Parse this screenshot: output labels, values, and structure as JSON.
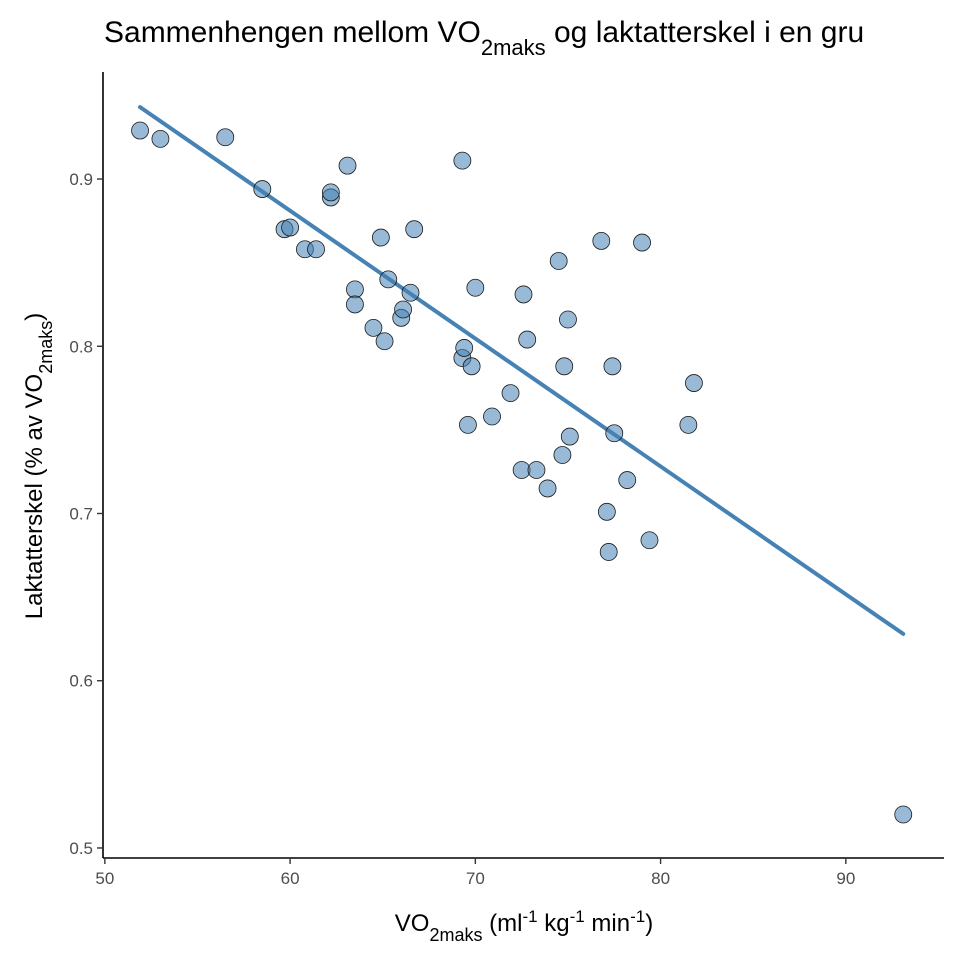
{
  "chart_data": {
    "type": "scatter",
    "title": {
      "prefix": "Sammenhengen mellom VO",
      "sub": "2maks",
      "suffix": " og laktatterskel i en gru"
    },
    "xlabel": {
      "prefix": "VO",
      "sub": "2maks",
      "mid1": " (ml",
      "sup1": "-1",
      "mid2": " kg",
      "sup2": "-1",
      "mid3": " min",
      "sup3": "-1",
      "suffix": ")"
    },
    "ylabel": {
      "prefix": "Laktatterskel (% av VO",
      "sub": "2maks",
      "suffix": ")"
    },
    "xlim": [
      49.9,
      95.3
    ],
    "ylim": [
      0.494,
      0.964
    ],
    "x_ticks": [
      50,
      60,
      70,
      80,
      90
    ],
    "y_ticks": [
      0.5,
      0.6,
      0.7,
      0.8,
      0.9
    ],
    "grid": false,
    "trend_line": {
      "x": [
        51.9,
        93.1
      ],
      "y": [
        0.943,
        0.628
      ],
      "color": "#4682b4"
    },
    "points_color": "#4682b4",
    "points": [
      {
        "x": 51.9,
        "y": 0.929
      },
      {
        "x": 53.0,
        "y": 0.924
      },
      {
        "x": 56.5,
        "y": 0.925
      },
      {
        "x": 58.5,
        "y": 0.894
      },
      {
        "x": 59.7,
        "y": 0.87
      },
      {
        "x": 60.0,
        "y": 0.871
      },
      {
        "x": 60.8,
        "y": 0.858
      },
      {
        "x": 61.4,
        "y": 0.858
      },
      {
        "x": 62.2,
        "y": 0.889
      },
      {
        "x": 62.2,
        "y": 0.892
      },
      {
        "x": 63.1,
        "y": 0.908
      },
      {
        "x": 63.5,
        "y": 0.834
      },
      {
        "x": 63.5,
        "y": 0.825
      },
      {
        "x": 64.5,
        "y": 0.811
      },
      {
        "x": 64.9,
        "y": 0.865
      },
      {
        "x": 65.1,
        "y": 0.803
      },
      {
        "x": 65.3,
        "y": 0.84
      },
      {
        "x": 66.0,
        "y": 0.817
      },
      {
        "x": 66.1,
        "y": 0.822
      },
      {
        "x": 66.5,
        "y": 0.832
      },
      {
        "x": 66.7,
        "y": 0.87
      },
      {
        "x": 69.3,
        "y": 0.911
      },
      {
        "x": 69.3,
        "y": 0.793
      },
      {
        "x": 69.4,
        "y": 0.799
      },
      {
        "x": 69.6,
        "y": 0.753
      },
      {
        "x": 69.8,
        "y": 0.788
      },
      {
        "x": 70.0,
        "y": 0.835
      },
      {
        "x": 70.9,
        "y": 0.758
      },
      {
        "x": 71.9,
        "y": 0.772
      },
      {
        "x": 72.5,
        "y": 0.726
      },
      {
        "x": 72.6,
        "y": 0.831
      },
      {
        "x": 72.8,
        "y": 0.804
      },
      {
        "x": 73.3,
        "y": 0.726
      },
      {
        "x": 73.9,
        "y": 0.715
      },
      {
        "x": 74.5,
        "y": 0.851
      },
      {
        "x": 74.7,
        "y": 0.735
      },
      {
        "x": 74.8,
        "y": 0.788
      },
      {
        "x": 75.0,
        "y": 0.816
      },
      {
        "x": 75.1,
        "y": 0.746
      },
      {
        "x": 76.8,
        "y": 0.863
      },
      {
        "x": 77.1,
        "y": 0.701
      },
      {
        "x": 77.2,
        "y": 0.677
      },
      {
        "x": 77.4,
        "y": 0.788
      },
      {
        "x": 77.5,
        "y": 0.748
      },
      {
        "x": 78.2,
        "y": 0.72
      },
      {
        "x": 79.0,
        "y": 0.862
      },
      {
        "x": 79.4,
        "y": 0.684
      },
      {
        "x": 81.5,
        "y": 0.753
      },
      {
        "x": 81.8,
        "y": 0.778
      },
      {
        "x": 93.1,
        "y": 0.52
      }
    ]
  }
}
